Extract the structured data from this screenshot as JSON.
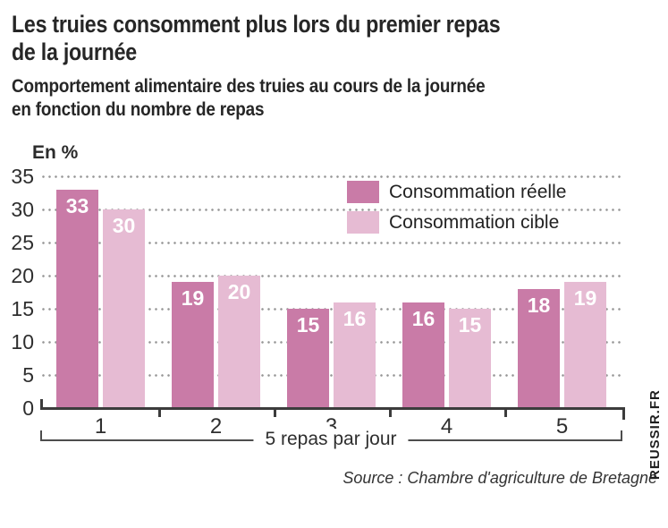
{
  "header": {
    "title": "Les truies consomment plus lors du premier repas\nde la journée",
    "subtitle": "Comportement alimentaire des truies au cours de la journée\nen fonction du nombre de repas"
  },
  "chart_data": {
    "type": "bar",
    "title": "Les truies consomment plus lors du premier repas de la journée",
    "unit_label": "En %",
    "categories": [
      "1",
      "2",
      "3",
      "4",
      "5"
    ],
    "series": [
      {
        "name": "Consommation réelle",
        "color": "#c97ba7",
        "values": [
          33,
          19,
          15,
          16,
          18
        ]
      },
      {
        "name": "Consommation cible",
        "color": "#e6bbd3",
        "values": [
          30,
          20,
          16,
          15,
          19
        ]
      }
    ],
    "ylim": [
      0,
      35
    ],
    "yticks": [
      0,
      5,
      10,
      15,
      20,
      25,
      30,
      35
    ],
    "xlabel": "5 repas par jour",
    "ylabel": "En %",
    "grid": "dotted-horizontal",
    "legend_position": "top-right",
    "value_labels": "white-inside-bar-top"
  },
  "footer": {
    "source": "Source : Chambre d'agriculture de Bretagne",
    "brand": "REUSSIR.FR"
  },
  "colors": {
    "background": "#ffffff",
    "text": "#262626",
    "axis": "#3c3c3c",
    "grid": "#969696",
    "bar_reelle": "#c97ba7",
    "bar_cible": "#e6bbd3",
    "value_label": "#ffffff"
  }
}
